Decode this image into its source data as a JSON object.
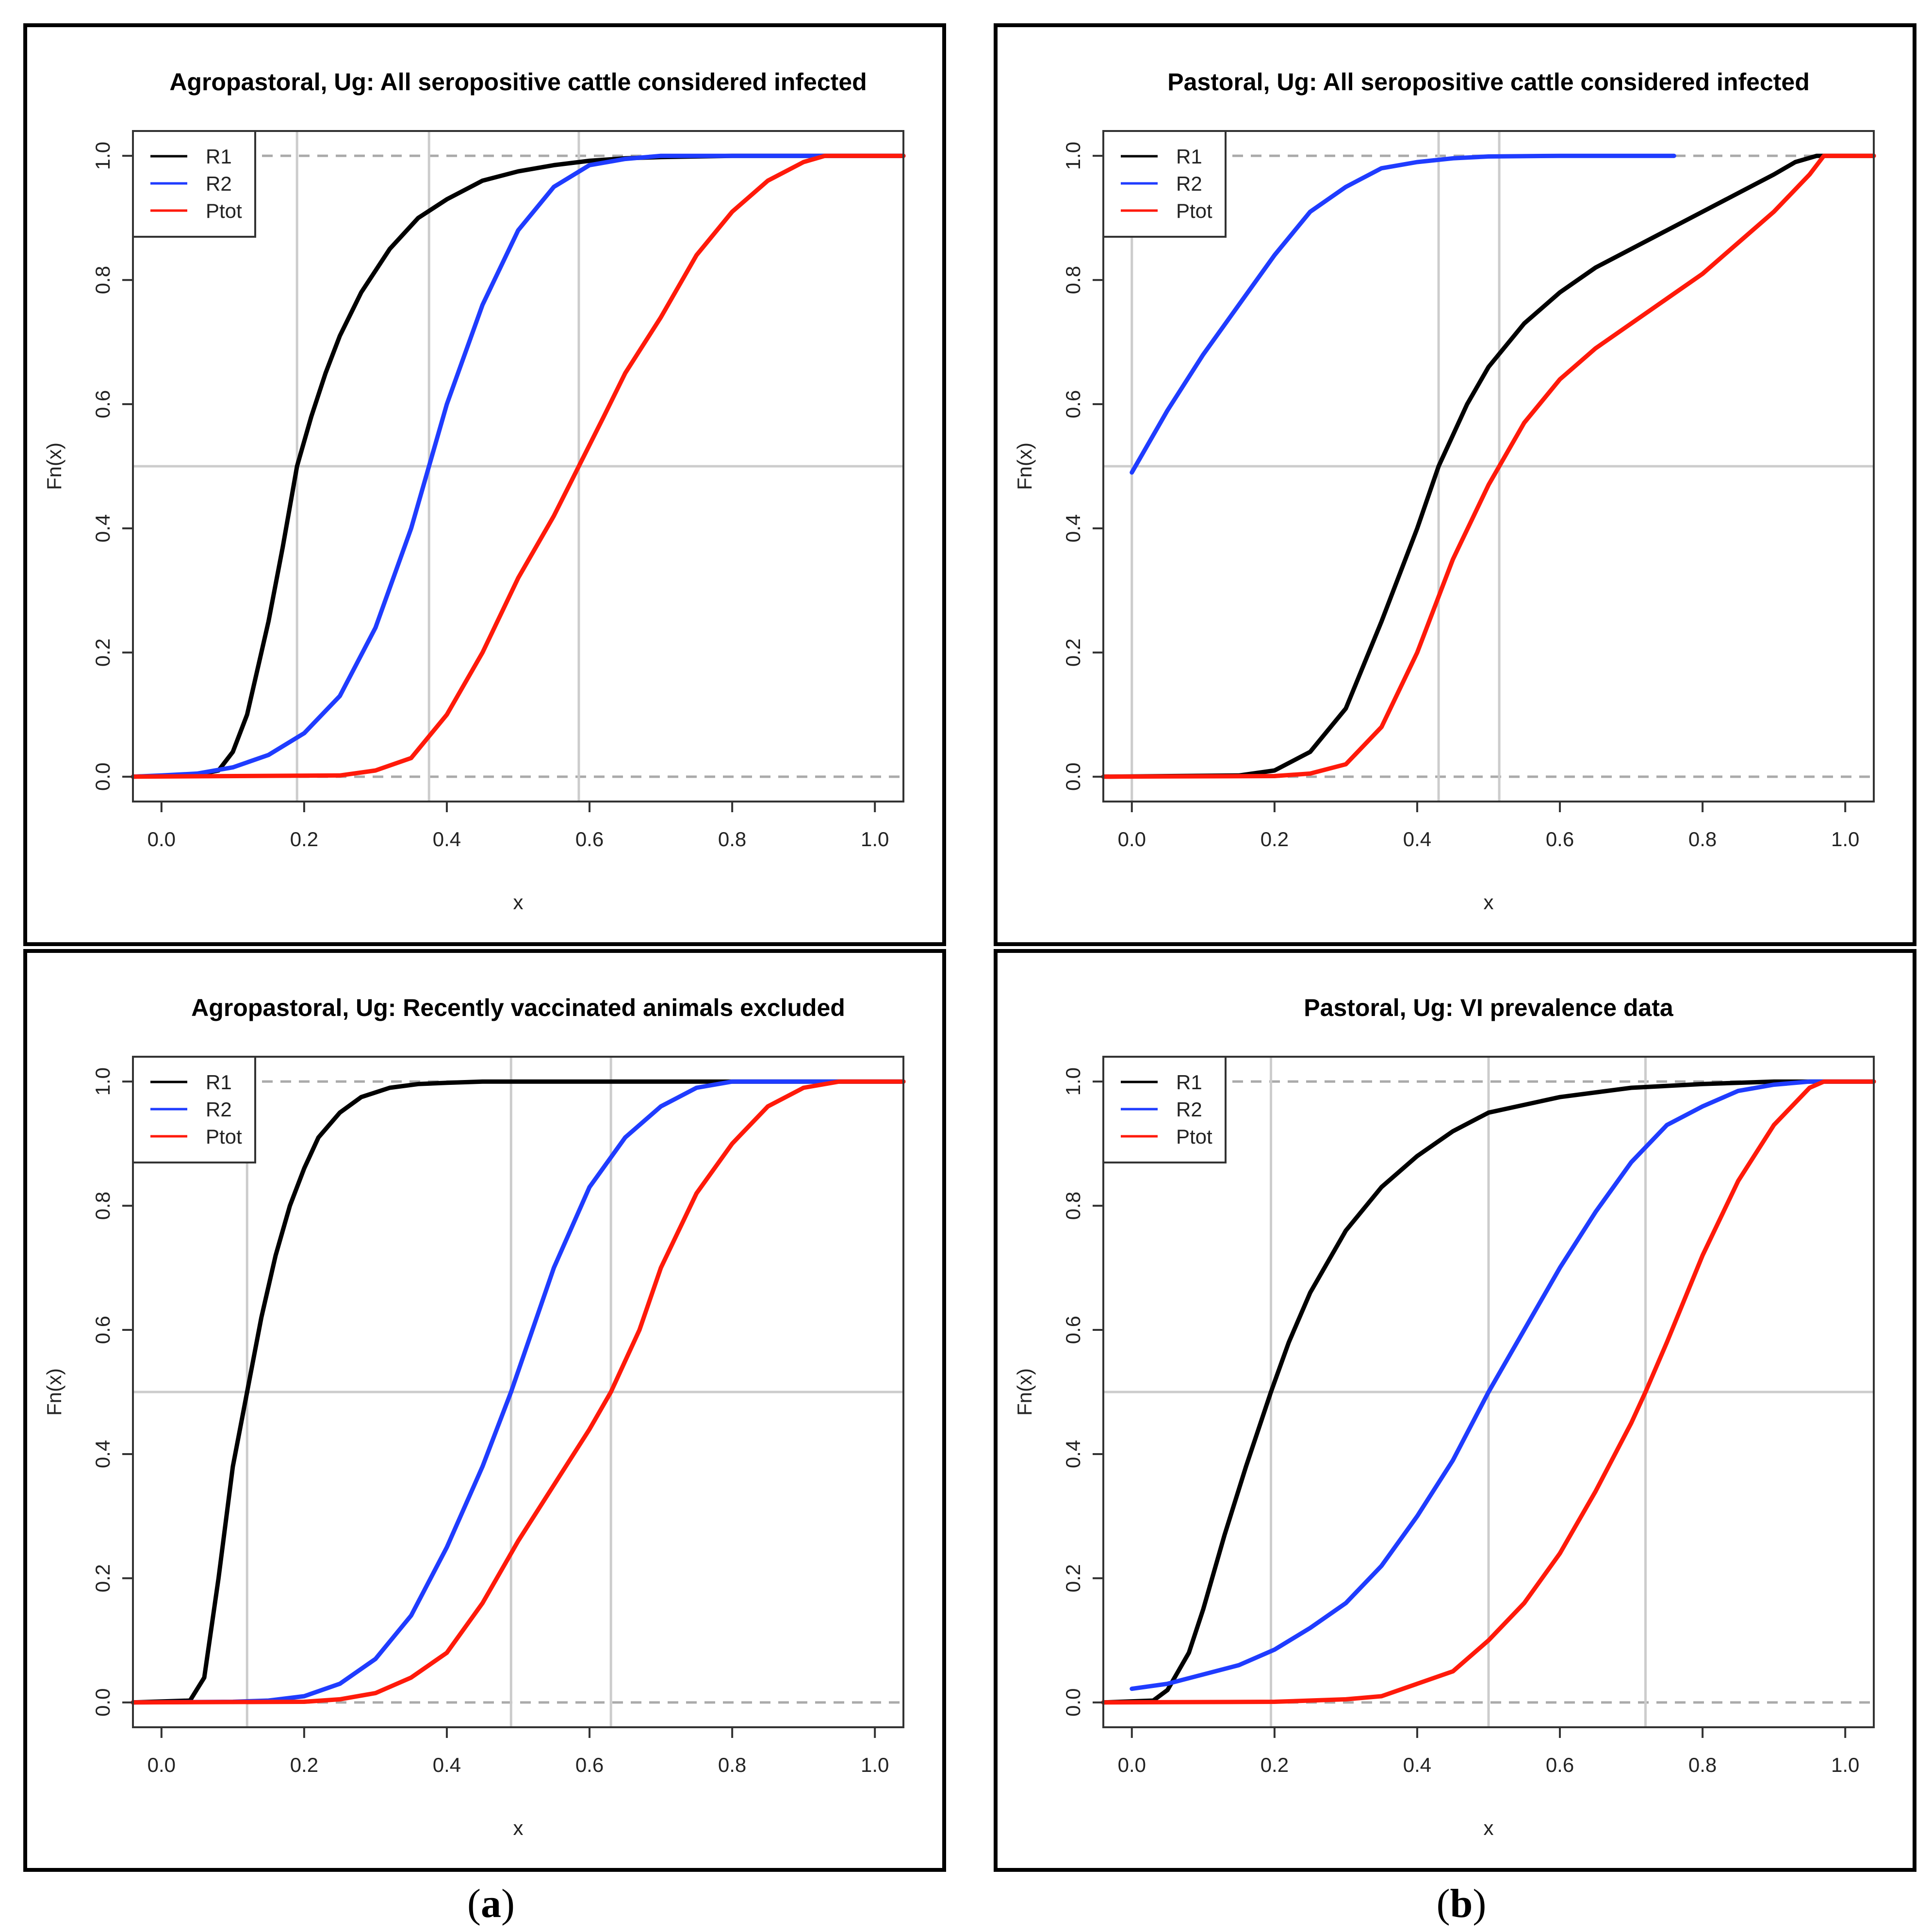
{
  "captions": {
    "a": "a",
    "b": "b"
  },
  "colors": {
    "R1": "#000000",
    "R2": "#1f3cff",
    "Ptot": "#ff1a0a",
    "ref": "#cccccc",
    "dash": "#aaaaaa"
  },
  "chart_data": [
    {
      "type": "line",
      "title": "Agropastoral, Ug: All seropositive cattle considered infected",
      "xlabel": "x",
      "ylabel": "Fn(x)",
      "xlim": [
        -0.04,
        1.04
      ],
      "ylim": [
        -0.04,
        1.04
      ],
      "x_ticks": [
        "0.0",
        "0.2",
        "0.4",
        "0.6",
        "0.8",
        "1.0"
      ],
      "y_ticks": [
        "0.0",
        "0.2",
        "0.4",
        "0.6",
        "0.8",
        "1.0"
      ],
      "legend": [
        "R1",
        "R2",
        "Ptot"
      ],
      "legend_position": "top-left",
      "median_line_y": 0.5,
      "vlines": [
        0.19,
        0.375,
        0.585
      ],
      "series": [
        {
          "name": "R1",
          "x": [
            -0.04,
            0.05,
            0.08,
            0.1,
            0.12,
            0.15,
            0.17,
            0.19,
            0.21,
            0.23,
            0.25,
            0.28,
            0.32,
            0.36,
            0.4,
            0.45,
            0.5,
            0.55,
            0.6,
            0.65,
            0.7,
            0.8,
            1.04
          ],
          "y": [
            0,
            0.003,
            0.01,
            0.04,
            0.1,
            0.25,
            0.37,
            0.5,
            0.58,
            0.65,
            0.71,
            0.78,
            0.85,
            0.9,
            0.93,
            0.96,
            0.975,
            0.985,
            0.992,
            0.996,
            0.998,
            1,
            1
          ]
        },
        {
          "name": "R2",
          "x": [
            -0.04,
            0.0,
            0.05,
            0.1,
            0.15,
            0.2,
            0.25,
            0.3,
            0.35,
            0.375,
            0.4,
            0.45,
            0.5,
            0.55,
            0.6,
            0.65,
            0.7,
            1.04
          ],
          "y": [
            0,
            0.002,
            0.005,
            0.015,
            0.035,
            0.07,
            0.13,
            0.24,
            0.4,
            0.5,
            0.6,
            0.76,
            0.88,
            0.95,
            0.985,
            0.995,
            1,
            1
          ]
        },
        {
          "name": "Ptot",
          "x": [
            -0.04,
            0.25,
            0.3,
            0.35,
            0.4,
            0.45,
            0.5,
            0.55,
            0.585,
            0.62,
            0.65,
            0.7,
            0.75,
            0.8,
            0.85,
            0.9,
            0.93,
            1.04
          ],
          "y": [
            0,
            0.002,
            0.01,
            0.03,
            0.1,
            0.2,
            0.32,
            0.42,
            0.5,
            0.58,
            0.65,
            0.74,
            0.84,
            0.91,
            0.96,
            0.99,
            1,
            1
          ]
        }
      ]
    },
    {
      "type": "line",
      "title": "Pastoral, Ug: All seropositive cattle considered infected",
      "xlabel": "x",
      "ylabel": "Fn(x)",
      "xlim": [
        -0.04,
        1.04
      ],
      "ylim": [
        -0.04,
        1.04
      ],
      "x_ticks": [
        "0.0",
        "0.2",
        "0.4",
        "0.6",
        "0.8",
        "1.0"
      ],
      "y_ticks": [
        "0.0",
        "0.2",
        "0.4",
        "0.6",
        "0.8",
        "1.0"
      ],
      "legend": [
        "R1",
        "R2",
        "Ptot"
      ],
      "legend_position": "top-left",
      "median_line_y": 0.5,
      "vlines": [
        0.0,
        0.43,
        0.515
      ],
      "series": [
        {
          "name": "R1",
          "x": [
            -0.04,
            0.15,
            0.2,
            0.25,
            0.3,
            0.35,
            0.4,
            0.43,
            0.47,
            0.5,
            0.55,
            0.6,
            0.65,
            0.7,
            0.75,
            0.8,
            0.85,
            0.9,
            0.93,
            0.96,
            1.04
          ],
          "y": [
            0,
            0.002,
            0.01,
            0.04,
            0.11,
            0.25,
            0.4,
            0.5,
            0.6,
            0.66,
            0.73,
            0.78,
            0.82,
            0.85,
            0.88,
            0.91,
            0.94,
            0.97,
            0.99,
            1,
            1
          ]
        },
        {
          "name": "R2",
          "x": [
            0.0,
            0.05,
            0.1,
            0.15,
            0.2,
            0.25,
            0.3,
            0.35,
            0.4,
            0.45,
            0.5,
            0.6,
            0.76
          ],
          "y": [
            0.49,
            0.59,
            0.68,
            0.76,
            0.84,
            0.91,
            0.95,
            0.98,
            0.99,
            0.996,
            0.999,
            1,
            1
          ]
        },
        {
          "name": "Ptot",
          "x": [
            -0.04,
            0.2,
            0.25,
            0.3,
            0.35,
            0.4,
            0.45,
            0.5,
            0.515,
            0.55,
            0.6,
            0.65,
            0.7,
            0.75,
            0.8,
            0.85,
            0.9,
            0.95,
            0.97,
            1.04
          ],
          "y": [
            0,
            0.001,
            0.005,
            0.02,
            0.08,
            0.2,
            0.35,
            0.47,
            0.5,
            0.57,
            0.64,
            0.69,
            0.73,
            0.77,
            0.81,
            0.86,
            0.91,
            0.97,
            1,
            1
          ]
        }
      ]
    },
    {
      "type": "line",
      "title": "Agropastoral, Ug: Recently vaccinated animals excluded",
      "xlabel": "x",
      "ylabel": "Fn(x)",
      "xlim": [
        -0.04,
        1.04
      ],
      "ylim": [
        -0.04,
        1.04
      ],
      "x_ticks": [
        "0.0",
        "0.2",
        "0.4",
        "0.6",
        "0.8",
        "1.0"
      ],
      "y_ticks": [
        "0.0",
        "0.2",
        "0.4",
        "0.6",
        "0.8",
        "1.0"
      ],
      "legend": [
        "R1",
        "R2",
        "Ptot"
      ],
      "legend_position": "top-left",
      "median_line_y": 0.5,
      "vlines": [
        0.12,
        0.49,
        0.63
      ],
      "series": [
        {
          "name": "R1",
          "x": [
            -0.04,
            0.04,
            0.06,
            0.08,
            0.1,
            0.12,
            0.14,
            0.16,
            0.18,
            0.2,
            0.22,
            0.25,
            0.28,
            0.32,
            0.36,
            0.4,
            0.45,
            0.5,
            1.04
          ],
          "y": [
            0,
            0.003,
            0.04,
            0.2,
            0.38,
            0.5,
            0.62,
            0.72,
            0.8,
            0.86,
            0.91,
            0.95,
            0.975,
            0.99,
            0.996,
            0.998,
            1,
            1,
            1
          ]
        },
        {
          "name": "R2",
          "x": [
            -0.04,
            0.1,
            0.15,
            0.2,
            0.25,
            0.3,
            0.35,
            0.4,
            0.45,
            0.49,
            0.52,
            0.55,
            0.6,
            0.65,
            0.7,
            0.75,
            0.8,
            0.85,
            1.04
          ],
          "y": [
            0,
            0.001,
            0.003,
            0.01,
            0.03,
            0.07,
            0.14,
            0.25,
            0.38,
            0.5,
            0.6,
            0.7,
            0.83,
            0.91,
            0.96,
            0.99,
            1,
            1,
            1
          ]
        },
        {
          "name": "Ptot",
          "x": [
            -0.04,
            0.2,
            0.25,
            0.3,
            0.35,
            0.4,
            0.45,
            0.5,
            0.55,
            0.6,
            0.63,
            0.67,
            0.7,
            0.75,
            0.8,
            0.85,
            0.9,
            0.95,
            1.04
          ],
          "y": [
            0,
            0.001,
            0.005,
            0.015,
            0.04,
            0.08,
            0.16,
            0.26,
            0.35,
            0.44,
            0.5,
            0.6,
            0.7,
            0.82,
            0.9,
            0.96,
            0.99,
            1,
            1
          ]
        }
      ]
    },
    {
      "type": "line",
      "title": "Pastoral, Ug: VI prevalence data",
      "xlabel": "x",
      "ylabel": "Fn(x)",
      "xlim": [
        -0.04,
        1.04
      ],
      "ylim": [
        -0.04,
        1.04
      ],
      "x_ticks": [
        "0.0",
        "0.2",
        "0.4",
        "0.6",
        "0.8",
        "1.0"
      ],
      "y_ticks": [
        "0.0",
        "0.2",
        "0.4",
        "0.6",
        "0.8",
        "1.0"
      ],
      "legend": [
        "R1",
        "R2",
        "Ptot"
      ],
      "legend_position": "top-left",
      "median_line_y": 0.5,
      "vlines": [
        0.195,
        0.5,
        0.72
      ],
      "series": [
        {
          "name": "R1",
          "x": [
            -0.04,
            0.03,
            0.05,
            0.08,
            0.1,
            0.13,
            0.16,
            0.195,
            0.22,
            0.25,
            0.3,
            0.35,
            0.4,
            0.45,
            0.5,
            0.6,
            0.7,
            0.8,
            0.9,
            1.04
          ],
          "y": [
            0,
            0.003,
            0.02,
            0.08,
            0.15,
            0.27,
            0.38,
            0.5,
            0.58,
            0.66,
            0.76,
            0.83,
            0.88,
            0.92,
            0.95,
            0.975,
            0.99,
            0.996,
            1,
            1
          ]
        },
        {
          "name": "R2",
          "x": [
            0.0,
            0.05,
            0.1,
            0.15,
            0.2,
            0.25,
            0.3,
            0.35,
            0.4,
            0.45,
            0.5,
            0.55,
            0.6,
            0.65,
            0.7,
            0.75,
            0.8,
            0.85,
            0.9,
            0.95,
            1.04
          ],
          "y": [
            0.022,
            0.03,
            0.045,
            0.06,
            0.085,
            0.12,
            0.16,
            0.22,
            0.3,
            0.39,
            0.5,
            0.6,
            0.7,
            0.79,
            0.87,
            0.93,
            0.96,
            0.985,
            0.995,
            1,
            1
          ]
        },
        {
          "name": "Ptot",
          "x": [
            -0.04,
            0.2,
            0.3,
            0.35,
            0.4,
            0.45,
            0.5,
            0.55,
            0.6,
            0.65,
            0.7,
            0.72,
            0.75,
            0.8,
            0.85,
            0.9,
            0.95,
            0.97,
            1.04
          ],
          "y": [
            0,
            0.001,
            0.005,
            0.01,
            0.03,
            0.05,
            0.1,
            0.16,
            0.24,
            0.34,
            0.45,
            0.5,
            0.58,
            0.72,
            0.84,
            0.93,
            0.99,
            1,
            1
          ]
        }
      ]
    }
  ]
}
